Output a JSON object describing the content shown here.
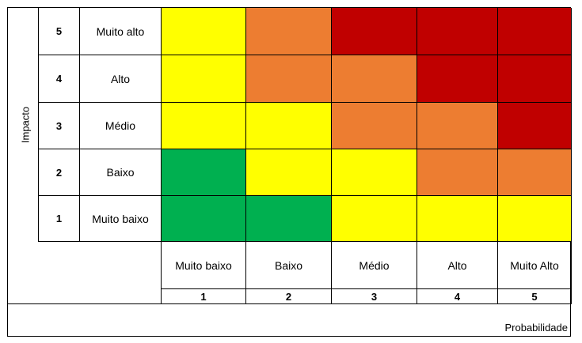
{
  "chart_data": {
    "type": "heatmap",
    "ylabel": "Impacto",
    "xlabel": "Probabilidade",
    "y_levels": [
      {
        "value": 5,
        "label": "Muito alto"
      },
      {
        "value": 4,
        "label": "Alto"
      },
      {
        "value": 3,
        "label": "Médio"
      },
      {
        "value": 2,
        "label": "Baixo"
      },
      {
        "value": 1,
        "label": "Muito baixo"
      }
    ],
    "x_levels": [
      {
        "value": 1,
        "label": "Muito baixo"
      },
      {
        "value": 2,
        "label": "Baixo"
      },
      {
        "value": 3,
        "label": "Médio"
      },
      {
        "value": 4,
        "label": "Alto"
      },
      {
        "value": 5,
        "label": "Muito Alto"
      }
    ],
    "cell_colors": [
      [
        "yellow",
        "orange",
        "red",
        "red",
        "red"
      ],
      [
        "yellow",
        "orange",
        "orange",
        "red",
        "red"
      ],
      [
        "yellow",
        "yellow",
        "orange",
        "orange",
        "red"
      ],
      [
        "green",
        "yellow",
        "yellow",
        "orange",
        "orange"
      ],
      [
        "green",
        "green",
        "yellow",
        "yellow",
        "yellow"
      ]
    ],
    "palette": {
      "green": "#00b050",
      "yellow": "#ffff00",
      "orange": "#ed7d31",
      "red": "#c00000"
    }
  }
}
